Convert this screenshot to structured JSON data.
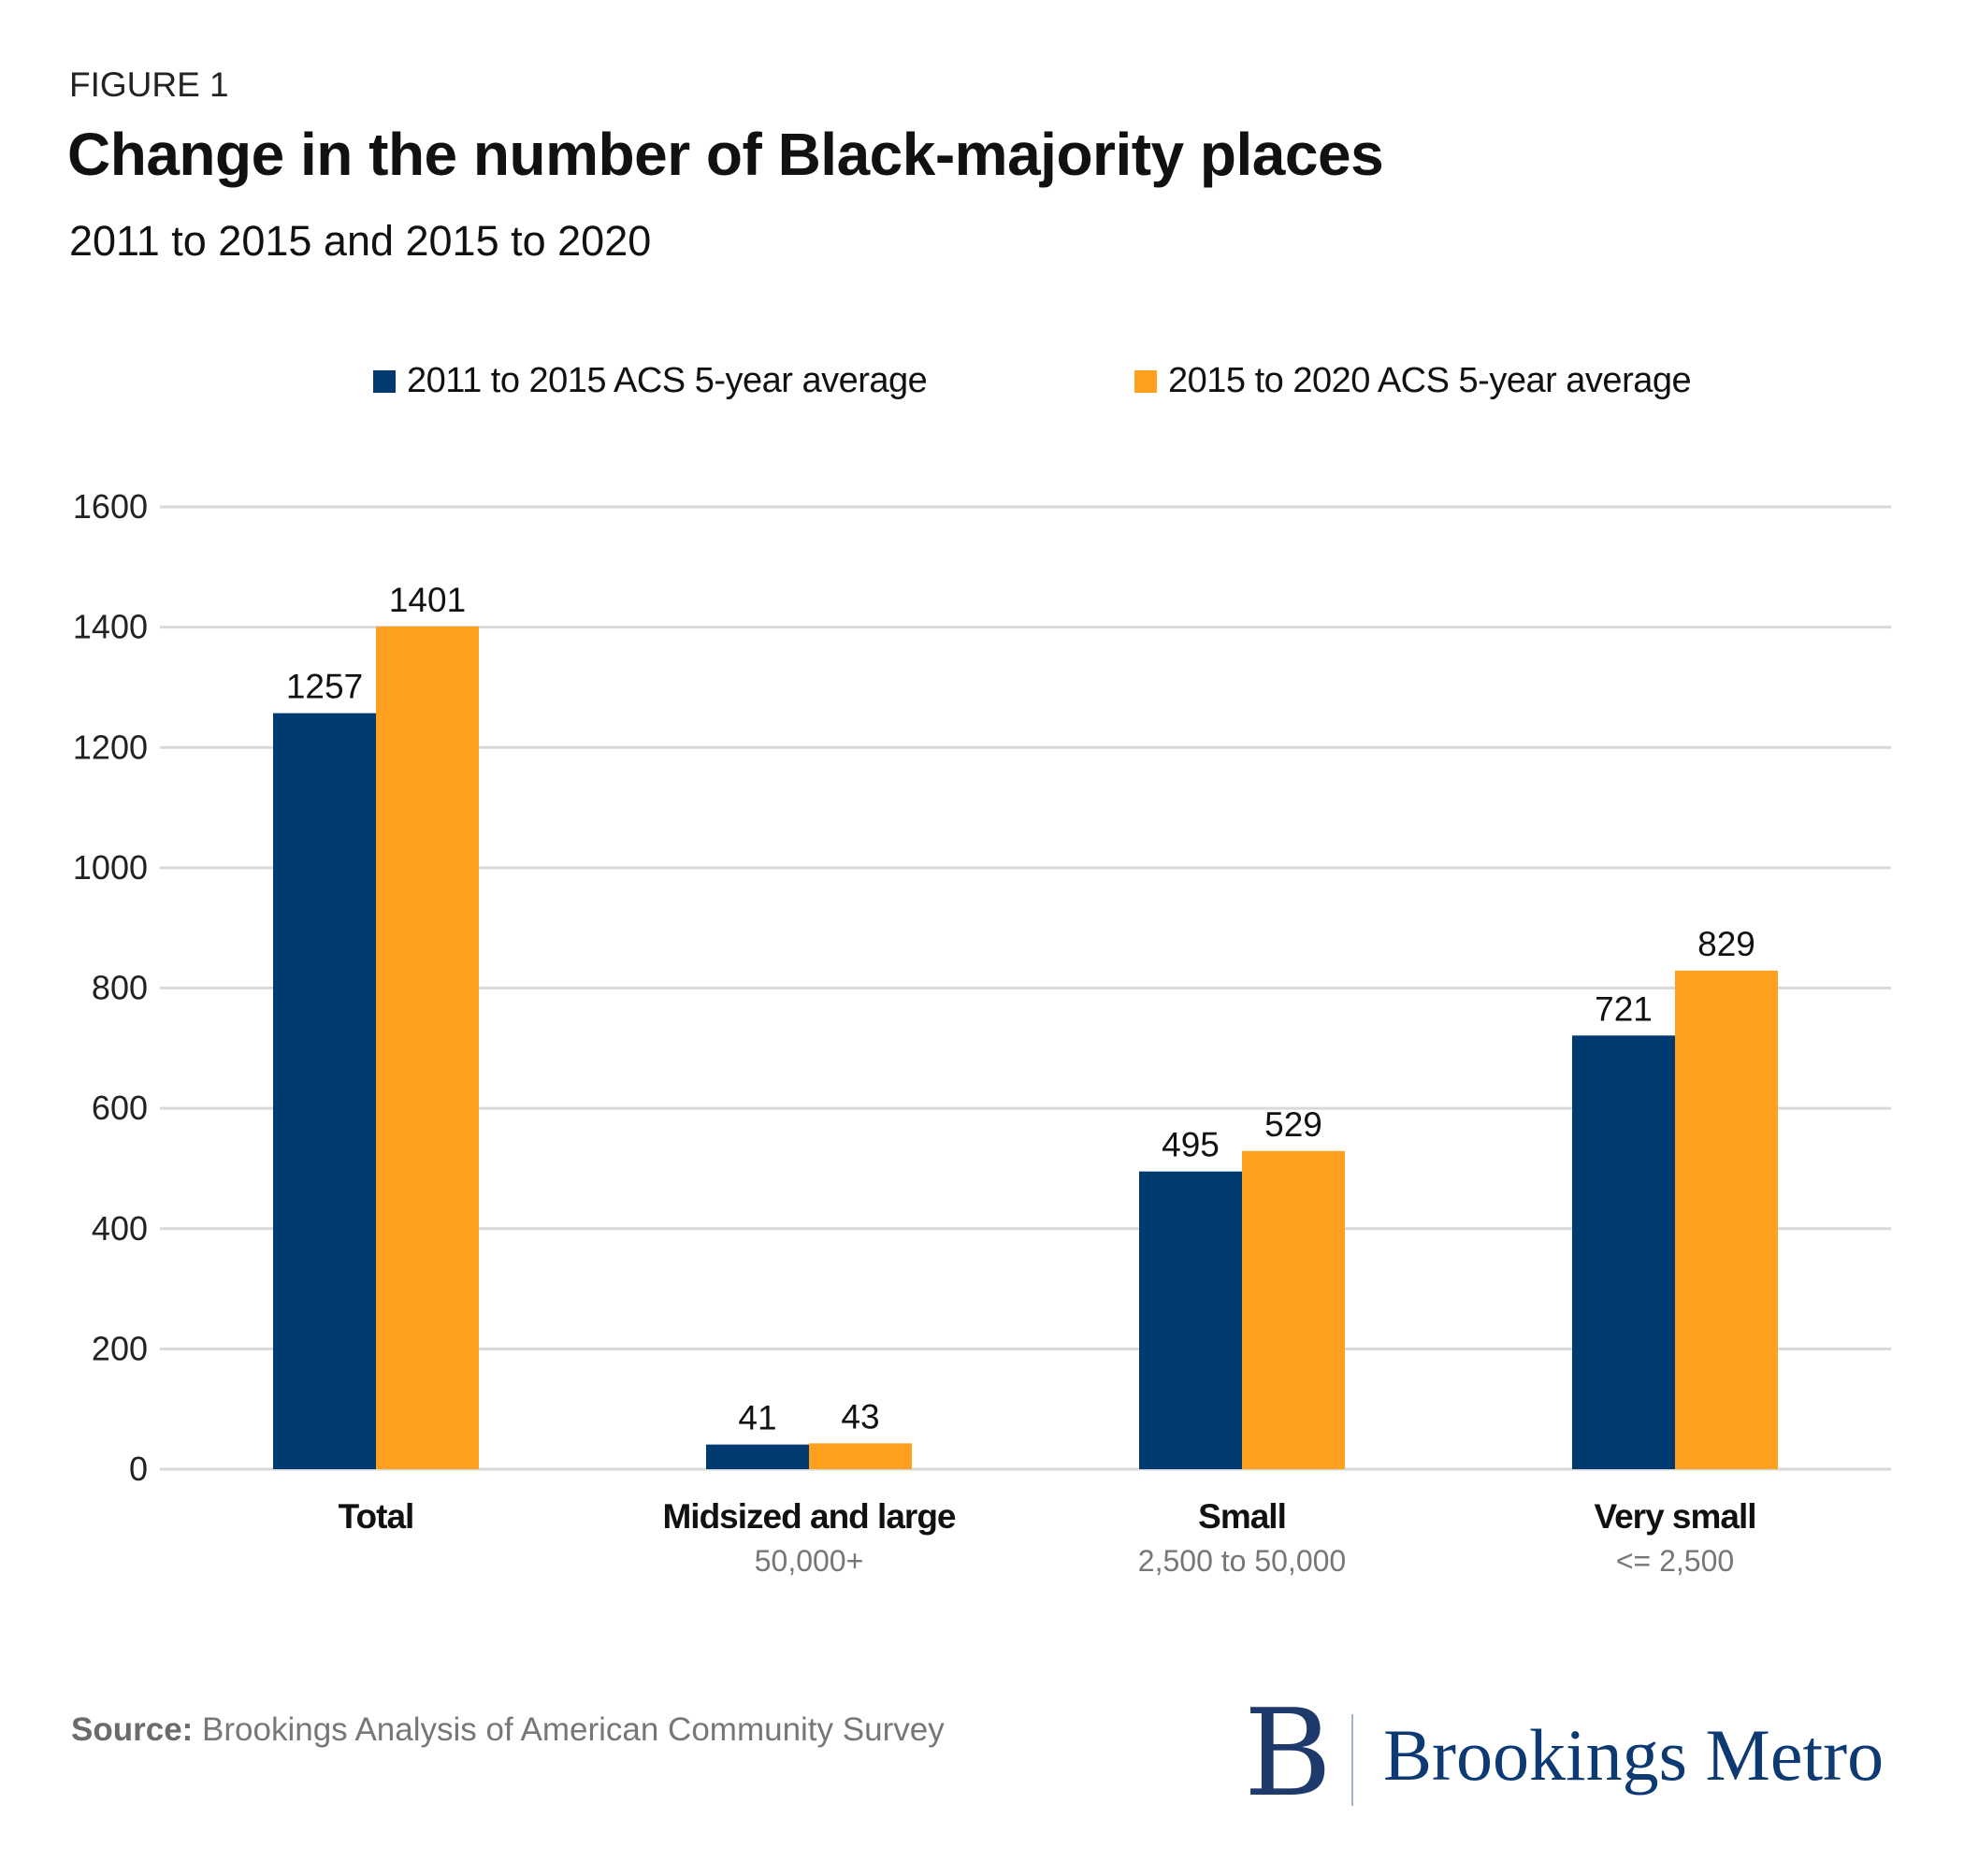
{
  "figure_label": "FIGURE 1",
  "source_label": "Source:",
  "source_text": " Brookings Analysis of American Community Survey",
  "logo": {
    "mark": "B",
    "text": "Brookings Metro"
  },
  "chart_data": {
    "type": "bar",
    "title": "Change in the number of Black-majority places",
    "subtitle": "2011 to 2015 and 2015 to 2020",
    "categories": [
      "Total",
      "Midsized and large",
      "Small",
      "Very small"
    ],
    "category_sublabels": [
      "",
      "50,000+",
      "2,500 to 50,000",
      "<= 2,500"
    ],
    "series": [
      {
        "name": "2011 to 2015 ACS 5-year average",
        "color": "#003a70",
        "values": [
          1257,
          41,
          495,
          721
        ]
      },
      {
        "name": "2015 to 2020 ACS 5-year average",
        "color": "#ffa11f",
        "values": [
          1401,
          43,
          529,
          829
        ]
      }
    ],
    "ylim": [
      0,
      1600
    ],
    "yticks": [
      "0",
      "200",
      "400",
      "600",
      "800",
      "1000",
      "1200",
      "1400",
      "1600"
    ],
    "grid": true,
    "legend_position": "top",
    "data_labels": true
  }
}
